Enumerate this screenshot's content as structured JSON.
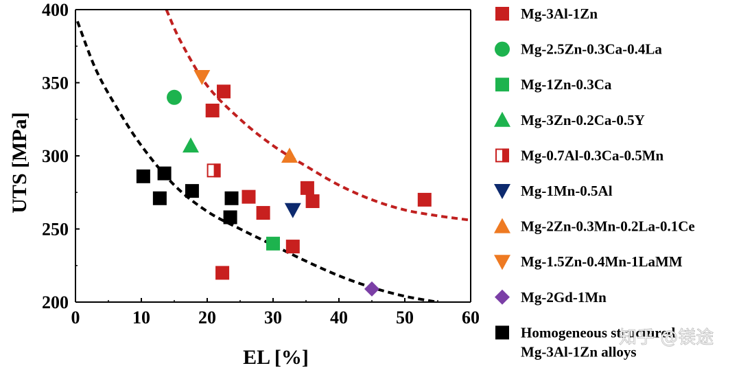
{
  "chart_data": {
    "type": "scatter",
    "xlabel": "EL [%]",
    "ylabel": "UTS [MPa]",
    "xlim": [
      0,
      60
    ],
    "ylim": [
      200,
      400
    ],
    "xticks": [
      0,
      10,
      20,
      30,
      40,
      50,
      60
    ],
    "yticks": [
      200,
      250,
      300,
      350,
      400
    ],
    "grid": false,
    "legend_position": "right",
    "series": [
      {
        "name": "Mg-3Al-1Zn",
        "marker": "square",
        "color": "#c8201f",
        "points": [
          [
            22.5,
            344
          ],
          [
            20.8,
            331
          ],
          [
            26.3,
            272
          ],
          [
            28.5,
            261
          ],
          [
            35.2,
            278
          ],
          [
            36.0,
            269
          ],
          [
            33.0,
            238
          ],
          [
            22.3,
            220
          ],
          [
            53.0,
            270
          ]
        ]
      },
      {
        "name": "Mg-2.5Zn-0.3Ca-0.4La",
        "marker": "circle",
        "color": "#1db34e",
        "points": [
          [
            15.0,
            340
          ]
        ]
      },
      {
        "name": "Mg-1Zn-0.3Ca",
        "marker": "square",
        "color": "#1db34e",
        "points": [
          [
            30.0,
            240
          ]
        ]
      },
      {
        "name": "Mg-3Zn-0.2Ca-0.5Y",
        "marker": "triangle-up",
        "color": "#1db34e",
        "points": [
          [
            17.5,
            307
          ]
        ]
      },
      {
        "name": "Mg-0.7Al-0.3Ca-0.5Mn",
        "marker": "half-square",
        "color": "#c8201f",
        "points": [
          [
            21.0,
            290
          ]
        ]
      },
      {
        "name": "Mg-1Mn-0.5Al",
        "marker": "triangle-down",
        "color": "#0d2a6e",
        "points": [
          [
            33.0,
            263
          ]
        ]
      },
      {
        "name": "Mg-2Zn-0.3Mn-0.2La-0.1Ce",
        "marker": "triangle-up",
        "color": "#ee7a22",
        "points": [
          [
            32.5,
            300
          ]
        ]
      },
      {
        "name": "Mg-1.5Zn-0.4Mn-1LaMM",
        "marker": "triangle-down",
        "color": "#ee7a22",
        "points": [
          [
            19.2,
            354
          ]
        ]
      },
      {
        "name": "Mg-2Gd-1Mn",
        "marker": "diamond",
        "color": "#7b3fa6",
        "points": [
          [
            45.0,
            209
          ]
        ]
      },
      {
        "name": "Homogeneous structured Mg-3Al-1Zn alloys",
        "name_lines": [
          "Homogeneous structured",
          "Mg-3Al-1Zn alloys"
        ],
        "marker": "square",
        "color": "#000000",
        "points": [
          [
            10.3,
            286
          ],
          [
            13.5,
            288
          ],
          [
            12.8,
            271
          ],
          [
            17.7,
            276
          ],
          [
            23.7,
            271
          ],
          [
            23.5,
            258
          ]
        ]
      }
    ],
    "fit_curves": [
      {
        "color": "#c0201f",
        "style": "dashed",
        "points": [
          [
            13.8,
            400
          ],
          [
            16,
            378
          ],
          [
            20,
            348
          ],
          [
            25,
            325
          ],
          [
            30,
            307
          ],
          [
            35,
            293
          ],
          [
            40,
            280
          ],
          [
            45,
            270
          ],
          [
            50,
            263
          ],
          [
            55,
            259
          ],
          [
            60,
            256
          ]
        ]
      },
      {
        "color": "#000000",
        "style": "dashed",
        "points": [
          [
            0.3,
            392
          ],
          [
            3,
            360
          ],
          [
            6,
            335
          ],
          [
            10,
            307
          ],
          [
            15,
            280
          ],
          [
            20,
            262
          ],
          [
            25,
            250
          ],
          [
            30,
            239
          ],
          [
            35,
            228
          ],
          [
            40,
            218
          ],
          [
            45,
            210
          ],
          [
            50,
            204
          ],
          [
            55,
            200
          ]
        ]
      }
    ]
  },
  "watermark": "知乎 @镁途"
}
